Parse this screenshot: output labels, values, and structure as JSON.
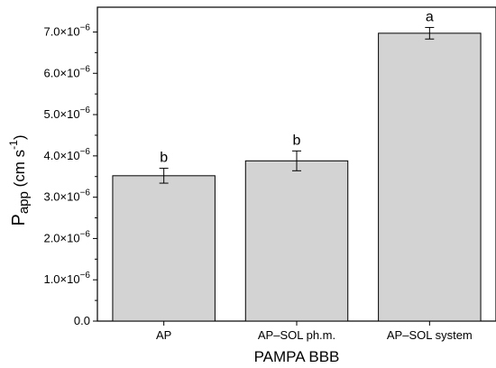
{
  "chart_data": {
    "type": "bar",
    "categories": [
      "AP",
      "AP–SOL ph.m.",
      "AP–SOL system"
    ],
    "values": [
      3.52e-06,
      3.88e-06,
      6.97e-06
    ],
    "errors": [
      1.8e-07,
      2.4e-07,
      1.4e-07
    ],
    "significance": [
      "b",
      "b",
      "a"
    ],
    "xlabel": "PAMPA BBB",
    "ylabel": {
      "base": "P",
      "sub": "app",
      "unit_pre": " (cm s",
      "unit_sup": "-1",
      "unit_post": ")"
    },
    "ylim": [
      0,
      7.6e-06
    ],
    "y_ticks": [
      0,
      1e-06,
      2e-06,
      3e-06,
      4e-06,
      5e-06,
      6e-06,
      7e-06
    ],
    "y_tick_labels": [
      "0.0",
      "1.0×10",
      "2.0×10",
      "3.0×10",
      "4.0×10",
      "5.0×10",
      "6.0×10",
      "7.0×10"
    ],
    "y_tick_exponent": "−6",
    "grid": false,
    "bar_color": "#d3d3d3"
  }
}
